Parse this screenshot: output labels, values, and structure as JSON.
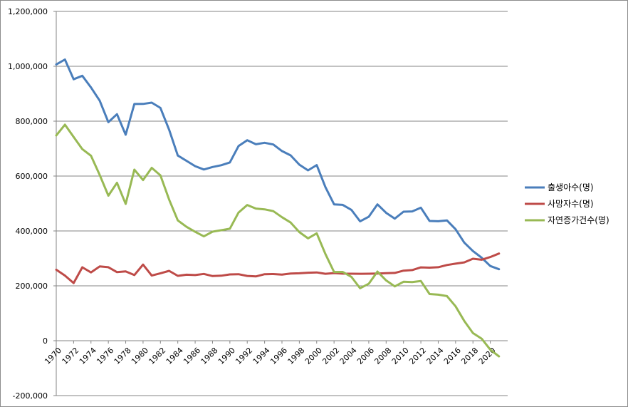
{
  "chart_data": {
    "type": "line",
    "x": [
      1970,
      1971,
      1972,
      1973,
      1974,
      1975,
      1976,
      1977,
      1978,
      1979,
      1980,
      1981,
      1982,
      1983,
      1984,
      1985,
      1986,
      1987,
      1988,
      1989,
      1990,
      1991,
      1992,
      1993,
      1994,
      1995,
      1996,
      1997,
      1998,
      1999,
      2000,
      2001,
      2002,
      2003,
      2004,
      2005,
      2006,
      2007,
      2008,
      2009,
      2010,
      2011,
      2012,
      2013,
      2014,
      2015,
      2016,
      2017,
      2018,
      2019,
      2020,
      2021
    ],
    "x_tick_labels": [
      "1970",
      "1972",
      "1974",
      "1976",
      "1978",
      "1980",
      "1982",
      "1984",
      "1986",
      "1988",
      "1990",
      "1992",
      "1994",
      "1996",
      "1998",
      "2000",
      "2002",
      "2004",
      "2006",
      "2008",
      "2010",
      "2012",
      "2014",
      "2016",
      "2018",
      "2020"
    ],
    "y_tick_labels": [
      "-200,000",
      "0",
      "200,000",
      "400,000",
      "600,000",
      "800,000",
      "1,000,000",
      "1,200,000"
    ],
    "ylim": [
      -200000,
      1200000
    ],
    "grid": true,
    "legend_position": "right",
    "series": [
      {
        "name": "출생아수(명)",
        "color": "#4a7ebb",
        "values": [
          1006645,
          1024773,
          952780,
          965521,
          922823,
          874869,
          796331,
          825339,
          750728,
          862669,
          862835,
          867409,
          848312,
          769155,
          674793,
          655489,
          636019,
          623831,
          633092,
          639431,
          649738,
          709275,
          730678,
          715826,
          721185,
          715020,
          691226,
          675394,
          641594,
          620668,
          640089,
          559934,
          496911,
          495036,
          476958,
          435031,
          451759,
          496822,
          465892,
          444849,
          470171,
          471265,
          484550,
          436455,
          435435,
          438420,
          406243,
          357771,
          326822,
          302676,
          272337,
          260562
        ]
      },
      {
        "name": "사망자수(명)",
        "color": "#be4b48",
        "values": [
          258589,
          237528,
          210071,
          267460,
          248807,
          270657,
          267721,
          249862,
          252385,
          239334,
          277284,
          237481,
          245767,
          254563,
          236445,
          240418,
          239256,
          243504,
          235707,
          236818,
          241616,
          242270,
          236162,
          234257,
          242439,
          242838,
          241149,
          244693,
          245825,
          247734,
          248740,
          243813,
          246515,
          244506,
          244217,
          243883,
          244162,
          244874,
          246113,
          246942,
          255405,
          257396,
          267221,
          266257,
          267692,
          275895,
          280827,
          285534,
          298820,
          295110,
          304948,
          317680
        ]
      },
      {
        "name": "자연증가건수(명)",
        "color": "#98b954",
        "values": [
          748056,
          787245,
          742709,
          698061,
          674016,
          604212,
          528610,
          575477,
          498343,
          623335,
          585551,
          629928,
          602545,
          514592,
          438348,
          415071,
          396763,
          380327,
          397385,
          402613,
          408122,
          467005,
          494516,
          481569,
          478746,
          472182,
          450077,
          430701,
          395769,
          372934,
          391349,
          316121,
          250396,
          250530,
          232741,
          191148,
          207597,
          251948,
          219779,
          197907,
          214766,
          213869,
          217329,
          170198,
          167743,
          162525,
          125416,
          72237,
          28002,
          7566,
          -32611,
          -57118
        ]
      }
    ]
  }
}
